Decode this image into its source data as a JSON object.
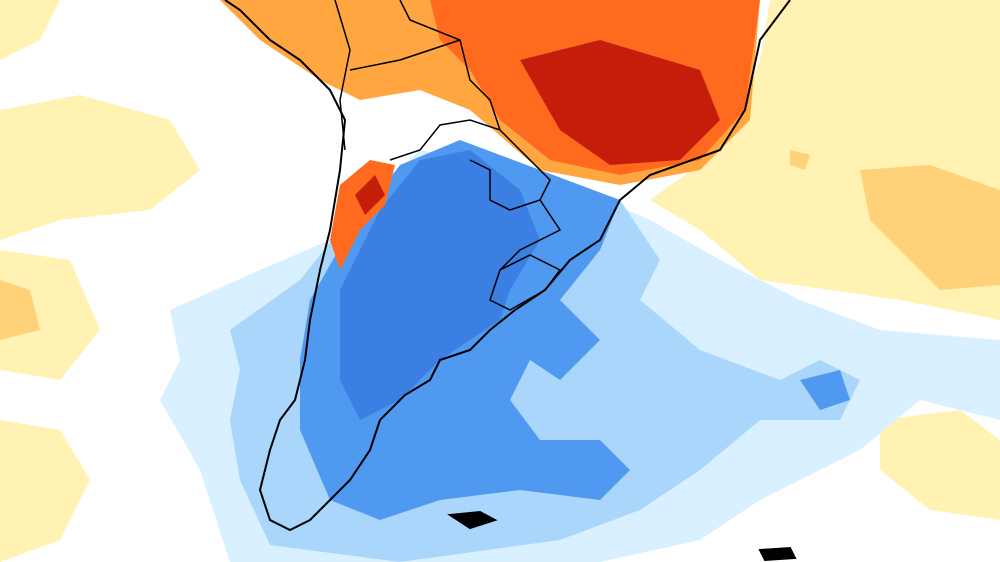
{
  "map": {
    "colors": {
      "background": "#ffffff",
      "pale_yellow": "#fff2b3",
      "light_orange": "#ffd27a",
      "orange": "#ffa640",
      "orange_red": "#ff6a1f",
      "red": "#e83a10",
      "dark_red": "#c41e0a",
      "pale_blue": "#d8f0ff",
      "light_blue": "#a9d6fa",
      "mid_blue": "#4f9af0",
      "blue": "#3b7fe3",
      "coast": "#000000",
      "borders": "#9a9a9a"
    }
  }
}
